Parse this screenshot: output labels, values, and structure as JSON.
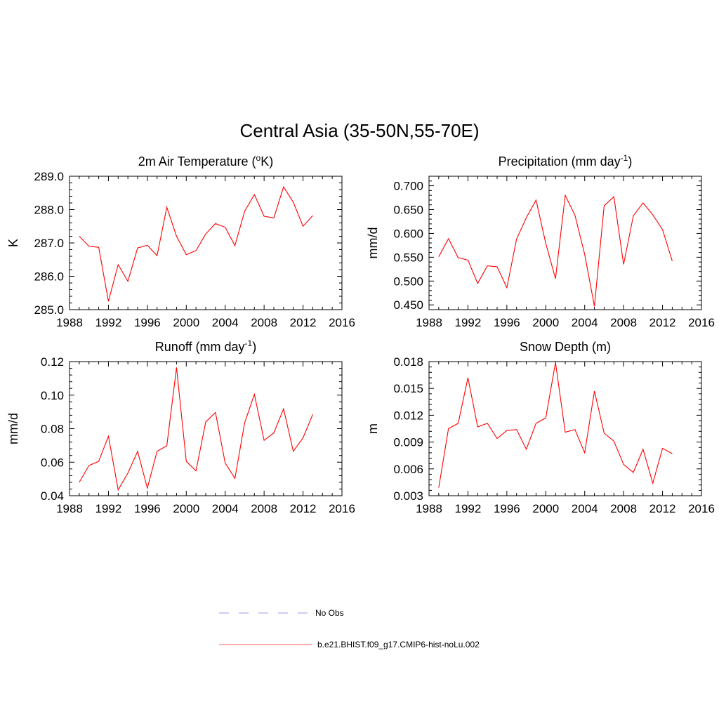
{
  "figure": {
    "title": "Central Asia (35-50N,55-70E)"
  },
  "chart_data": [
    {
      "id": "temp",
      "type": "line",
      "title_main": "2m Air Temperature (",
      "title_sup": "o",
      "title_after": "K)",
      "xlabel": "",
      "ylabel": "K",
      "xlim": [
        1988,
        2016
      ],
      "ylim": [
        285.0,
        289.0
      ],
      "xticks": [
        1988,
        1992,
        1996,
        2000,
        2004,
        2008,
        2012,
        2016
      ],
      "yticks": [
        "285.0",
        "286.0",
        "287.0",
        "288.0",
        "289.0"
      ],
      "series": [
        {
          "color": "#ff0000",
          "x": [
            1989,
            1990,
            1991,
            1992,
            1993,
            1994,
            1995,
            1996,
            1997,
            1998,
            1999,
            2000,
            2001,
            2002,
            2003,
            2004,
            2005,
            2006,
            2007,
            2008,
            2009,
            2010,
            2011,
            2012,
            2013
          ],
          "y": [
            287.2,
            286.9,
            286.87,
            285.25,
            286.35,
            285.85,
            286.85,
            286.93,
            286.62,
            288.07,
            287.2,
            286.65,
            286.77,
            287.27,
            287.58,
            287.47,
            286.92,
            287.95,
            288.45,
            287.8,
            287.75,
            288.68,
            288.22,
            287.5,
            287.82
          ]
        }
      ]
    },
    {
      "id": "precip",
      "type": "line",
      "title_main": "Precipitation (mm day",
      "title_sup": "-1",
      "title_after": ")",
      "xlabel": "",
      "ylabel": "mm/d",
      "xlim": [
        1988,
        2016
      ],
      "ylim": [
        0.44,
        0.72
      ],
      "xticks": [
        1988,
        1992,
        1996,
        2000,
        2004,
        2008,
        2012,
        2016
      ],
      "yticks": [
        "0.450",
        "0.500",
        "0.550",
        "0.600",
        "0.650",
        "0.700"
      ],
      "series": [
        {
          "color": "#ff0000",
          "x": [
            1989,
            1990,
            1991,
            1992,
            1993,
            1994,
            1995,
            1996,
            1997,
            1998,
            1999,
            2000,
            2001,
            2002,
            2003,
            2004,
            2005,
            2006,
            2007,
            2008,
            2009,
            2010,
            2011,
            2012,
            2013
          ],
          "y": [
            0.551,
            0.589,
            0.549,
            0.544,
            0.495,
            0.532,
            0.53,
            0.486,
            0.588,
            0.633,
            0.67,
            0.579,
            0.505,
            0.68,
            0.638,
            0.556,
            0.447,
            0.658,
            0.677,
            0.535,
            0.637,
            0.664,
            0.639,
            0.608,
            0.542
          ]
        }
      ]
    },
    {
      "id": "runoff",
      "type": "line",
      "title_main": "Runoff (mm day",
      "title_sup": "-1",
      "title_after": ")",
      "xlabel": "",
      "ylabel": "mm/d",
      "xlim": [
        1988,
        2016
      ],
      "ylim": [
        0.04,
        0.12
      ],
      "xticks": [
        1988,
        1992,
        1996,
        2000,
        2004,
        2008,
        2012,
        2016
      ],
      "yticks": [
        "0.04",
        "0.06",
        "0.08",
        "0.10",
        "0.12"
      ],
      "series": [
        {
          "color": "#ff0000",
          "x": [
            1989,
            1990,
            1991,
            1992,
            1993,
            1994,
            1995,
            1996,
            1997,
            1998,
            1999,
            2000,
            2001,
            2002,
            2003,
            2004,
            2005,
            2006,
            2007,
            2008,
            2009,
            2010,
            2011,
            2012,
            2013
          ],
          "y": [
            0.048,
            0.058,
            0.0605,
            0.0755,
            0.0435,
            0.0535,
            0.0665,
            0.0445,
            0.0665,
            0.0698,
            0.1165,
            0.0605,
            0.0548,
            0.084,
            0.0897,
            0.0595,
            0.0503,
            0.0835,
            0.1005,
            0.073,
            0.0775,
            0.0918,
            0.0665,
            0.0745,
            0.0885
          ]
        }
      ]
    },
    {
      "id": "snow",
      "type": "line",
      "title_main": "Snow Depth (m)",
      "title_sup": "",
      "title_after": "",
      "xlabel": "",
      "ylabel": "m",
      "xlim": [
        1988,
        2016
      ],
      "ylim": [
        0.003,
        0.018
      ],
      "xticks": [
        1988,
        1992,
        1996,
        2000,
        2004,
        2008,
        2012,
        2016
      ],
      "yticks": [
        "0.003",
        "0.006",
        "0.009",
        "0.012",
        "0.015",
        "0.018"
      ],
      "series": [
        {
          "color": "#ff0000",
          "x": [
            1989,
            1990,
            1991,
            1992,
            1993,
            1994,
            1995,
            1996,
            1997,
            1998,
            1999,
            2000,
            2001,
            2002,
            2003,
            2004,
            2005,
            2006,
            2007,
            2008,
            2009,
            2010,
            2011,
            2012,
            2013
          ],
          "y": [
            0.0039,
            0.0105,
            0.0111,
            0.0162,
            0.0107,
            0.0111,
            0.0094,
            0.0103,
            0.0104,
            0.0082,
            0.0111,
            0.0117,
            0.0179,
            0.0101,
            0.0104,
            0.0078,
            0.0147,
            0.01,
            0.0091,
            0.0065,
            0.0056,
            0.0082,
            0.0044,
            0.0083,
            0.0077
          ]
        }
      ]
    }
  ],
  "legend": {
    "items": [
      {
        "label": "No Obs",
        "style": "dashed",
        "color": "#9999ee"
      },
      {
        "label": "b.e21.BHIST.f09_g17.CMIP6-hist-noLu.002",
        "style": "solid",
        "color": "#ff6666"
      }
    ]
  }
}
